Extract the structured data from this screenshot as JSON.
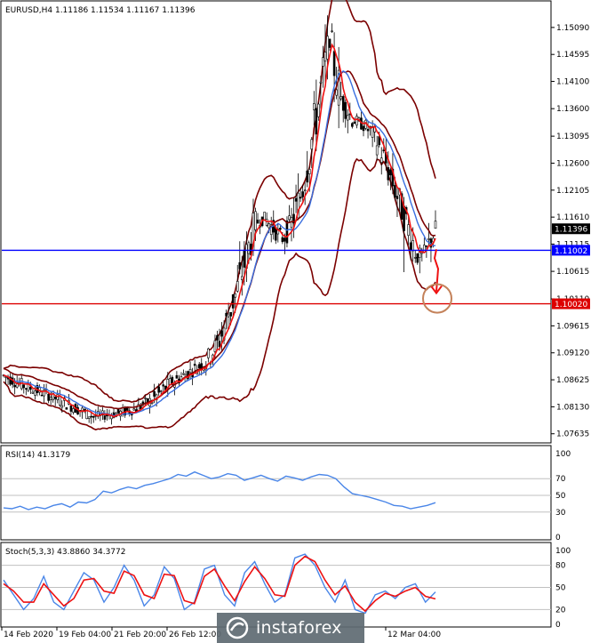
{
  "chart_data": [
    {
      "type": "candlestick",
      "title": "EURUSD,H4  1.11186 1.11534 1.11167 1.11396",
      "ylim": [
        1.075,
        1.153
      ],
      "y_ticks": [
        "1.15090",
        "1.14595",
        "1.14100",
        "1.13600",
        "1.13095",
        "1.12600",
        "1.12105",
        "1.11610",
        "1.11115",
        "1.10615",
        "1.10110",
        "1.09615",
        "1.09120",
        "1.08625",
        "1.08130",
        "1.07635"
      ],
      "current_price_label": "1.11396",
      "levels": [
        {
          "value": 1.11002,
          "label": "1.11002",
          "color": "#0000ff"
        },
        {
          "value": 1.1002,
          "label": "1.10020",
          "color": "#dd0000"
        }
      ],
      "candles_count": 150,
      "price_path": [
        [
          0,
          1.087
        ],
        [
          10,
          1.085
        ],
        [
          20,
          1.0835
        ],
        [
          30,
          1.0815
        ],
        [
          40,
          1.0795
        ],
        [
          50,
          1.08
        ],
        [
          58,
          1.0808
        ],
        [
          66,
          1.0825
        ],
        [
          74,
          1.0855
        ],
        [
          82,
          1.0875
        ],
        [
          90,
          1.0895
        ],
        [
          96,
          1.0935
        ],
        [
          100,
          1.098
        ],
        [
          104,
          1.103
        ],
        [
          108,
          1.109
        ],
        [
          112,
          1.115
        ],
        [
          116,
          1.116
        ],
        [
          120,
          1.114
        ],
        [
          124,
          1.112
        ],
        [
          128,
          1.115
        ],
        [
          132,
          1.12
        ],
        [
          136,
          1.128
        ],
        [
          140,
          1.137
        ],
        [
          143,
          1.144
        ],
        [
          145,
          1.148
        ],
        [
          147,
          1.144
        ],
        [
          150,
          1.138
        ],
        [
          155,
          1.134
        ],
        [
          160,
          1.133
        ],
        [
          165,
          1.131
        ],
        [
          170,
          1.126
        ],
        [
          175,
          1.12
        ],
        [
          180,
          1.114
        ],
        [
          184,
          1.109
        ],
        [
          188,
          1.11
        ],
        [
          192,
          1.114
        ]
      ],
      "arrow_target": 1.1002
    },
    {
      "type": "line",
      "title": "RSI(14) 41.3179",
      "ylim": [
        0,
        100
      ],
      "y_ticks": [
        "100",
        "70",
        "50",
        "30",
        "0"
      ],
      "values": [
        35,
        34,
        37,
        33,
        36,
        34,
        38,
        40,
        36,
        42,
        41,
        45,
        55,
        53,
        57,
        60,
        58,
        62,
        64,
        67,
        70,
        75,
        73,
        78,
        74,
        70,
        72,
        76,
        74,
        68,
        71,
        74,
        70,
        67,
        73,
        71,
        68,
        72,
        75,
        74,
        70,
        60,
        52,
        50,
        48,
        45,
        42,
        38,
        37,
        34,
        36,
        38,
        41.3
      ]
    },
    {
      "type": "line",
      "title": "Stoch(5,3,3) 43.8860 34.3772",
      "ylim": [
        0,
        100
      ],
      "y_ticks": [
        "100",
        "80",
        "50",
        "20",
        "0"
      ],
      "main": [
        60,
        40,
        20,
        35,
        65,
        30,
        20,
        45,
        70,
        60,
        30,
        50,
        80,
        60,
        25,
        40,
        78,
        62,
        20,
        30,
        75,
        80,
        40,
        25,
        70,
        85,
        55,
        30,
        40,
        90,
        95,
        80,
        50,
        30,
        60,
        20,
        15,
        40,
        45,
        35,
        50,
        55,
        30,
        43.9
      ],
      "signal": [
        55,
        45,
        30,
        30,
        55,
        40,
        25,
        35,
        60,
        62,
        45,
        42,
        72,
        66,
        40,
        35,
        68,
        66,
        32,
        28,
        65,
        75,
        52,
        32,
        58,
        78,
        62,
        40,
        38,
        80,
        92,
        85,
        60,
        40,
        52,
        30,
        18,
        32,
        42,
        38,
        45,
        50,
        38,
        34.4
      ]
    }
  ],
  "x_axis_labels": [
    "14 Feb 2020",
    "19 Feb 04:00",
    "21 Feb 20:00",
    "26 Feb 12:00",
    "12 Mar 04:00"
  ],
  "watermark": "instaforex"
}
